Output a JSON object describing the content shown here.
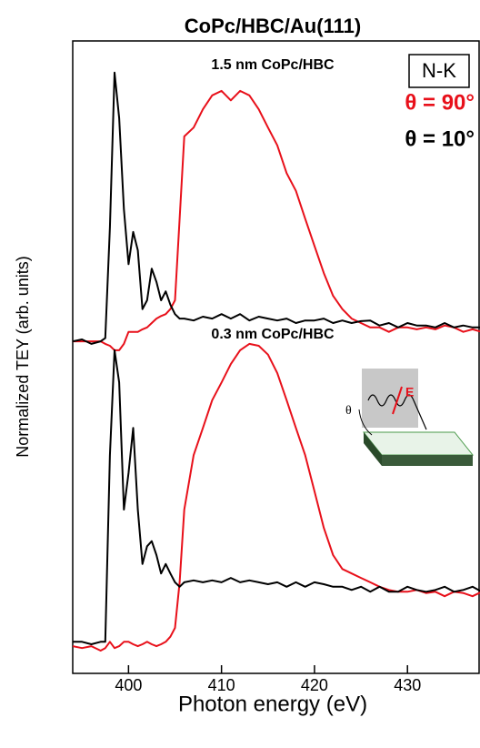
{
  "chart_data": {
    "type": "line",
    "title": "CoPc/HBC/Au(111)",
    "x_label": "Photon energy (eV)",
    "y_label": "Normalized TEY (arb. units)",
    "annotations": [
      "1.5 nm CoPc/HBC",
      "0.3 nm CoPc/HBC",
      "N-K"
    ],
    "inset": {
      "angle_label": "θ",
      "field_label": "E"
    },
    "xlim": [
      394,
      437.8
    ],
    "ylim": [
      0,
      100
    ],
    "xticks": [
      400,
      410,
      420,
      430
    ],
    "x": [
      394,
      395,
      396,
      397,
      397.5,
      398,
      398.5,
      399,
      399.5,
      400,
      400.5,
      401,
      401.5,
      402,
      402.5,
      403,
      403.5,
      404,
      404.5,
      405,
      405.5,
      406,
      407,
      408,
      409,
      410,
      411,
      412,
      413,
      414,
      415,
      416,
      417,
      418,
      419,
      420,
      421,
      422,
      423,
      424,
      425,
      426,
      427,
      428,
      429,
      430,
      431,
      432,
      433,
      434,
      435,
      436,
      437,
      438
    ],
    "series": [
      {
        "name": "θ = 90°",
        "color": "#e8101a",
        "values": [
          52.5,
          52.5,
          52.5,
          52.5,
          52.1,
          51.8,
          51.1,
          51.1,
          52.1,
          54.0,
          54.0,
          54.0,
          54.4,
          54.7,
          55.4,
          56.1,
          56.5,
          56.8,
          57.6,
          59.0,
          71.9,
          84.9,
          86.3,
          89.2,
          91.4,
          92.1,
          90.6,
          92.1,
          91.4,
          89.2,
          86.3,
          83.5,
          79.1,
          76.3,
          71.9,
          67.6,
          63.3,
          59.7,
          57.6,
          56.1,
          55.4,
          54.7,
          54.7,
          54.0,
          54.7,
          54.7,
          54.4,
          54.7,
          54.4,
          55.0,
          54.7,
          54.0,
          54.4,
          54.0
        ]
      },
      {
        "name": "θ = 10°",
        "color": "#000000",
        "values": [
          52.5,
          52.8,
          52.1,
          52.5,
          53.0,
          70.5,
          95.0,
          87.8,
          73.4,
          64.7,
          69.8,
          66.9,
          57.6,
          59.0,
          64.0,
          61.9,
          59.0,
          60.4,
          58.3,
          56.8,
          56.1,
          56.1,
          55.8,
          56.4,
          56.1,
          56.8,
          56.1,
          56.8,
          55.8,
          56.4,
          56.1,
          55.8,
          56.1,
          55.4,
          55.8,
          55.8,
          56.1,
          55.4,
          55.8,
          55.4,
          55.7,
          55.8,
          55.0,
          55.4,
          54.7,
          55.4,
          55.0,
          55.0,
          54.7,
          55.4,
          54.7,
          55.0,
          54.7,
          54.7
        ]
      },
      {
        "name": "θ = 90°",
        "color": "#e8101a",
        "values": [
          4.3,
          4.0,
          4.3,
          3.6,
          4.0,
          5.0,
          4.0,
          4.3,
          5.0,
          5.0,
          4.6,
          4.3,
          4.6,
          5.0,
          4.6,
          4.3,
          4.6,
          5.0,
          5.8,
          7.2,
          14.4,
          25.9,
          34.5,
          38.8,
          43.2,
          46.0,
          48.9,
          51.1,
          52.1,
          51.8,
          50.4,
          47.5,
          43.2,
          38.8,
          34.5,
          28.8,
          23.0,
          18.7,
          16.5,
          15.8,
          15.1,
          14.4,
          13.7,
          13.2,
          12.9,
          12.9,
          13.2,
          12.7,
          12.9,
          12.2,
          12.9,
          12.7,
          12.2,
          12.9
        ]
      },
      {
        "name": "θ = 10°",
        "color": "#000000",
        "values": [
          5.0,
          5.0,
          4.6,
          5.0,
          5.0,
          34.5,
          51.1,
          46.0,
          25.9,
          31.7,
          38.8,
          25.9,
          17.3,
          20.1,
          20.9,
          18.7,
          15.8,
          17.3,
          15.8,
          14.4,
          13.7,
          14.4,
          14.7,
          14.4,
          14.7,
          14.4,
          15.1,
          14.4,
          14.7,
          14.4,
          14.1,
          14.4,
          13.7,
          14.4,
          13.7,
          14.4,
          14.1,
          13.7,
          13.7,
          13.2,
          13.7,
          12.9,
          13.7,
          12.9,
          12.9,
          13.7,
          13.2,
          12.9,
          13.2,
          13.7,
          12.9,
          13.2,
          13.7,
          12.9
        ]
      }
    ]
  }
}
